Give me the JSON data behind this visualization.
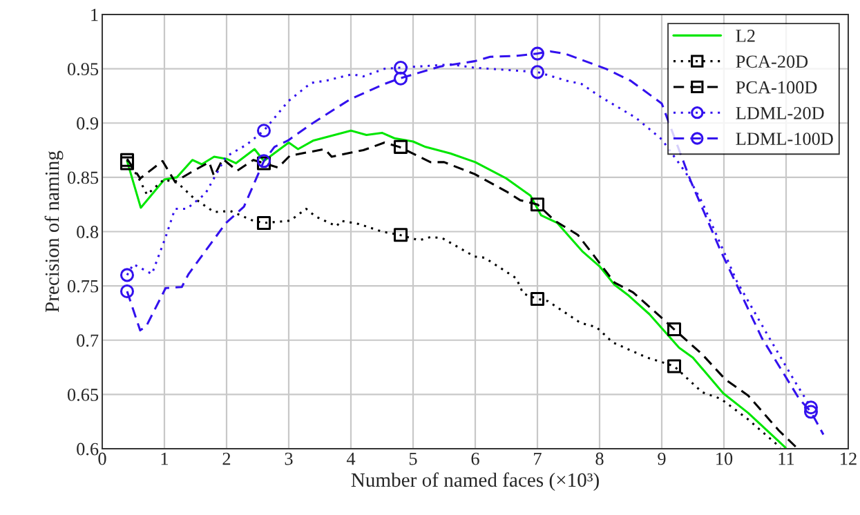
{
  "chart_data": {
    "type": "line",
    "xlabel": "Number of named faces (×10³)",
    "ylabel": "Precision of naming",
    "xlim": [
      0,
      12
    ],
    "xticks": [
      0,
      1,
      2,
      3,
      4,
      5,
      6,
      7,
      8,
      9,
      10,
      11,
      12
    ],
    "ylim": [
      0.6,
      1
    ],
    "yticks": [
      0.6,
      0.65,
      0.7,
      0.75,
      0.8,
      0.85,
      0.9,
      0.95,
      1
    ],
    "grid": true,
    "legend": "top right",
    "series": [
      {
        "name": "L2",
        "color": "#00e600",
        "line_style": "solid",
        "x": [
          0.4,
          0.62,
          1.0,
          1.2,
          1.45,
          1.6,
          1.8,
          2.0,
          2.15,
          2.45,
          2.6,
          3.0,
          3.15,
          3.4,
          4.0,
          4.25,
          4.5,
          4.7,
          5.0,
          5.2,
          5.6,
          6.0,
          6.5,
          6.89,
          7.06,
          7.32,
          7.72,
          8.0,
          8.24,
          8.47,
          8.8,
          9.28,
          9.5,
          9.99,
          10.39,
          10.99
        ],
        "values": [
          0.865,
          0.822,
          0.848,
          0.85,
          0.866,
          0.862,
          0.869,
          0.867,
          0.863,
          0.876,
          0.865,
          0.882,
          0.876,
          0.884,
          0.893,
          0.889,
          0.891,
          0.886,
          0.883,
          0.878,
          0.872,
          0.864,
          0.849,
          0.833,
          0.815,
          0.808,
          0.782,
          0.768,
          0.751,
          0.741,
          0.724,
          0.693,
          0.684,
          0.651,
          0.633,
          0.601
        ]
      },
      {
        "name": "PCA-20D",
        "color": "#000000",
        "line_style": "dotted",
        "x": [
          0.4,
          0.58,
          0.72,
          0.99,
          1.21,
          1.47,
          1.8,
          2.06,
          2.43,
          2.6,
          3.02,
          3.28,
          3.43,
          3.77,
          3.84,
          4.13,
          4.5,
          4.78,
          5.1,
          5.28,
          5.47,
          5.99,
          6.15,
          6.66,
          6.77,
          7.0,
          7.17,
          7.69,
          7.95,
          8.21,
          8.76,
          8.99,
          9.2,
          9.65,
          9.95,
          10.39,
          10.91
        ],
        "values": [
          0.866,
          0.85,
          0.834,
          0.848,
          0.845,
          0.831,
          0.818,
          0.819,
          0.81,
          0.808,
          0.81,
          0.821,
          0.814,
          0.805,
          0.81,
          0.807,
          0.8,
          0.797,
          0.792,
          0.795,
          0.794,
          0.777,
          0.776,
          0.757,
          0.743,
          0.738,
          0.736,
          0.716,
          0.712,
          0.698,
          0.684,
          0.68,
          0.676,
          0.652,
          0.646,
          0.627,
          0.601
        ]
      },
      {
        "type": "scatter",
        "color": "#000000",
        "marker": "square",
        "x": [
          0.4,
          2.6,
          4.8,
          7.0,
          9.2
        ],
        "values": [
          0.866,
          0.808,
          0.797,
          0.738,
          0.676
        ]
      },
      {
        "name": "PCA-100D",
        "color": "#000000",
        "line_style": "dashed",
        "x": [
          0.4,
          0.61,
          0.97,
          1.17,
          1.47,
          1.72,
          1.8,
          1.94,
          2.17,
          2.43,
          2.6,
          2.83,
          3.02,
          3.58,
          3.69,
          4.02,
          4.2,
          4.54,
          4.78,
          5.28,
          5.5,
          5.99,
          6.5,
          6.72,
          7.0,
          7.28,
          7.65,
          7.88,
          8.24,
          8.54,
          8.99,
          9.2,
          9.65,
          10.02,
          10.39,
          10.88,
          11.17
        ],
        "values": [
          0.867,
          0.849,
          0.865,
          0.846,
          0.856,
          0.864,
          0.851,
          0.867,
          0.856,
          0.866,
          0.863,
          0.859,
          0.87,
          0.876,
          0.869,
          0.873,
          0.875,
          0.882,
          0.878,
          0.864,
          0.864,
          0.853,
          0.837,
          0.829,
          0.825,
          0.81,
          0.797,
          0.78,
          0.753,
          0.744,
          0.721,
          0.71,
          0.687,
          0.664,
          0.649,
          0.617,
          0.601
        ]
      },
      {
        "type": "scatter",
        "color": "#000000",
        "marker": "square",
        "x": [
          0.4,
          2.6,
          4.8,
          7.0,
          9.2
        ],
        "values": [
          0.863,
          0.863,
          0.878,
          0.825,
          0.71
        ]
      },
      {
        "name": "LDML-20D",
        "color": "#3311ee",
        "line_style": "dotted",
        "x": [
          0.4,
          0.5,
          0.8,
          1.02,
          1.17,
          1.36,
          1.66,
          1.99,
          2.32,
          2.6,
          2.99,
          3.36,
          3.6,
          4.02,
          4.2,
          4.54,
          4.78,
          5.61,
          5.99,
          7.0,
          7.47,
          7.71,
          8.02,
          8.58,
          9.0,
          9.39,
          9.65,
          10.21,
          10.69,
          11.13,
          11.4
        ],
        "values": [
          0.76,
          0.77,
          0.761,
          0.795,
          0.821,
          0.821,
          0.835,
          0.869,
          0.88,
          0.893,
          0.92,
          0.937,
          0.939,
          0.945,
          0.943,
          0.95,
          0.951,
          0.954,
          0.951,
          0.947,
          0.939,
          0.936,
          0.924,
          0.905,
          0.885,
          0.854,
          0.827,
          0.754,
          0.706,
          0.663,
          0.638
        ]
      },
      {
        "type": "scatter",
        "color": "#3311ee",
        "marker": "circle",
        "x": [
          0.4,
          2.6,
          4.8,
          7.0,
          11.4
        ],
        "values": [
          0.76,
          0.893,
          0.951,
          0.947,
          0.638
        ]
      },
      {
        "name": "LDML-100D",
        "color": "#3311ee",
        "line_style": "dashed",
        "x": [
          0.4,
          0.61,
          0.71,
          1.02,
          1.28,
          1.39,
          1.99,
          2.28,
          2.6,
          2.77,
          2.99,
          3.36,
          3.99,
          4.54,
          4.78,
          5.43,
          5.99,
          6.24,
          6.68,
          7.0,
          7.21,
          7.44,
          8.1,
          8.5,
          9.0,
          9.47,
          9.95,
          10.61,
          11.21,
          11.4,
          11.6
        ],
        "values": [
          0.745,
          0.709,
          0.713,
          0.748,
          0.749,
          0.761,
          0.808,
          0.823,
          0.865,
          0.878,
          0.884,
          0.899,
          0.922,
          0.936,
          0.941,
          0.952,
          0.957,
          0.961,
          0.962,
          0.964,
          0.966,
          0.964,
          0.95,
          0.939,
          0.918,
          0.846,
          0.782,
          0.702,
          0.646,
          0.634,
          0.613
        ]
      },
      {
        "type": "scatter",
        "color": "#3311ee",
        "marker": "circle",
        "x": [
          0.4,
          2.6,
          4.8,
          7.0,
          11.4
        ],
        "values": [
          0.745,
          0.865,
          0.941,
          0.964,
          0.634
        ]
      }
    ]
  }
}
